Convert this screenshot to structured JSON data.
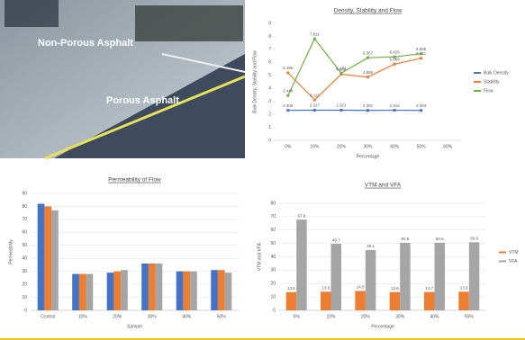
{
  "photo": {
    "labels": [
      "Non-Porous Asphalt",
      "Porous Asphalt"
    ]
  },
  "chart_data": [
    {
      "type": "line",
      "title": "Density, Stability and Flow",
      "x_label": "Percentage",
      "y_label": "Bulk Density, Stability and Flow",
      "categories": [
        "0%",
        "10%",
        "20%",
        "30%",
        "40%",
        "50%",
        "60%"
      ],
      "series": [
        {
          "name": "Bulk Density",
          "color": "#4472c4",
          "values": [
            2.305,
            2.317,
            2.321,
            2.301,
            2.314,
            2.303,
            null
          ]
        },
        {
          "name": "Stability",
          "color": "#ed7d31",
          "values": [
            5.196,
            3.111,
            5.086,
            4.866,
            5.868,
            6.311,
            null
          ]
        },
        {
          "name": "Flow",
          "color": "#70ad47",
          "values": [
            3.448,
            7.811,
            5.171,
            6.357,
            6.425,
            6.666,
            null
          ]
        }
      ],
      "ylim": [
        0,
        9
      ],
      "yticks": [
        0,
        1,
        2,
        3,
        4,
        5,
        6,
        7,
        8,
        9
      ],
      "grid": false,
      "data_labels": true,
      "legend": "right"
    },
    {
      "type": "bar",
      "title": "Permeability of Flow",
      "x_label": "Sample",
      "y_label": "Permeability",
      "categories": [
        "Control",
        "10%",
        "20%",
        "30%",
        "40%",
        "50%"
      ],
      "series": [
        {
          "color": "#4472c4",
          "values": [
            82,
            28,
            29,
            36,
            30,
            31
          ]
        },
        {
          "color": "#ed7d31",
          "values": [
            80,
            28,
            30,
            36,
            30,
            31
          ]
        },
        {
          "color": "#a5a5a5",
          "values": [
            77,
            28,
            31,
            36,
            30,
            29
          ]
        }
      ],
      "ylim": [
        0,
        90
      ],
      "yticks": [
        0,
        10,
        20,
        30,
        40,
        50,
        60,
        70,
        80,
        90
      ],
      "grid": true,
      "data_labels": false
    },
    {
      "type": "bar",
      "title": "VTM and VFA",
      "x_label": "Percentage",
      "y_label": "VTM and VFA",
      "categories": [
        "0%",
        "10%",
        "20%",
        "30%",
        "40%",
        "50%"
      ],
      "series": [
        {
          "name": "VTM",
          "color": "#ed7d31",
          "values": [
            13.6,
            13.9,
            14.5,
            13.6,
            13.7,
            13.9
          ]
        },
        {
          "name": "VFA",
          "color": "#a5a5a5",
          "values": [
            67.8,
            49.7,
            45.1,
            50.5,
            50.5,
            50.9
          ]
        }
      ],
      "ylim": [
        0,
        80
      ],
      "yticks": [
        0,
        10,
        20,
        30,
        40,
        50,
        60,
        70,
        80
      ],
      "grid": true,
      "data_labels": true,
      "legend": "right"
    }
  ]
}
